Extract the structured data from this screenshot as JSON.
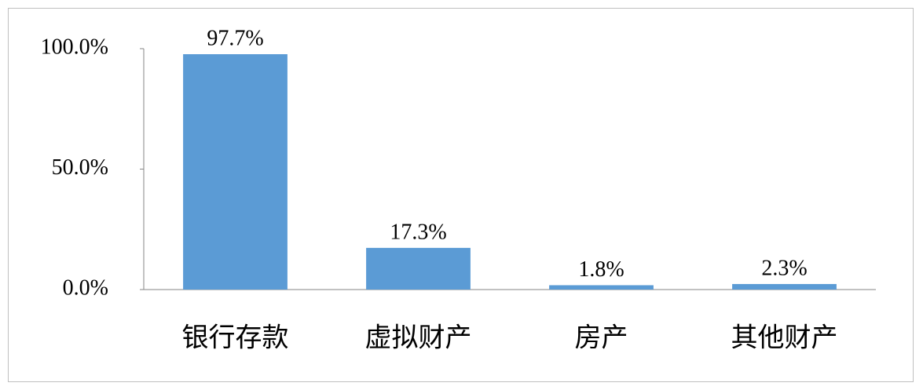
{
  "chart_data": {
    "type": "bar",
    "categories": [
      "银行存款",
      "虚拟财产",
      "房产",
      "其他财产"
    ],
    "values": [
      97.7,
      17.3,
      1.8,
      2.3
    ],
    "value_labels": [
      "97.7%",
      "17.3%",
      "1.8%",
      "2.3%"
    ],
    "color": "#5b9bd5",
    "ylim": [
      0,
      100
    ],
    "yticks": [
      {
        "value": 0,
        "label": "0.0%"
      },
      {
        "value": 50,
        "label": "50.0%"
      },
      {
        "value": 100,
        "label": "100.0%"
      }
    ],
    "grid": false
  }
}
